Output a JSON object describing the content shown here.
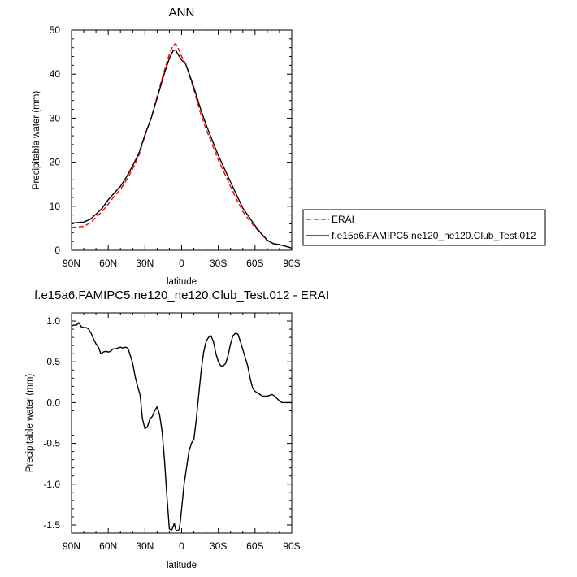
{
  "chart_data": [
    {
      "type": "line",
      "title": "ANN",
      "xlabel": "latitude",
      "ylabel": "Precipitable water (mm)",
      "xlim": [
        90,
        -90
      ],
      "ylim": [
        0,
        50
      ],
      "x_ticks": [
        90,
        60,
        30,
        0,
        -30,
        -60,
        -90
      ],
      "x_tick_labels": [
        "90N",
        "60N",
        "30N",
        "0",
        "30S",
        "60S",
        "90S"
      ],
      "y_ticks": [
        0,
        10,
        20,
        30,
        40,
        50
      ],
      "y_tick_labels": [
        "0",
        "10",
        "20",
        "30",
        "40",
        "50"
      ],
      "legend_position": "right",
      "series": [
        {
          "name": "ERAI",
          "color": "#ff0000",
          "style": "dashed",
          "x": [
            90,
            85,
            80,
            75,
            70,
            65,
            60,
            55,
            50,
            45,
            40,
            35,
            30,
            25,
            20,
            15,
            10,
            7,
            5,
            3,
            0,
            -3,
            -5,
            -10,
            -15,
            -20,
            -25,
            -30,
            -35,
            -40,
            -45,
            -50,
            -55,
            -60,
            -65,
            -70,
            -75,
            -80,
            -85,
            -90
          ],
          "y": [
            5.2,
            5.3,
            5.4,
            6.2,
            7.5,
            8.8,
            10.5,
            12.3,
            13.8,
            16.0,
            18.5,
            21.5,
            26.0,
            30.0,
            35.0,
            40.0,
            44.5,
            46.5,
            46.9,
            46.0,
            44.0,
            42.5,
            41.0,
            36.5,
            31.5,
            27.5,
            24.0,
            20.5,
            17.5,
            14.5,
            11.5,
            8.8,
            6.9,
            5.2,
            3.7,
            2.2,
            1.5,
            1.3,
            0.9,
            0.5
          ]
        },
        {
          "name": "f.e15a6.FAMIPC5.ne120_ne120.Club_Test.012",
          "color": "#000000",
          "style": "solid",
          "x": [
            90,
            85,
            80,
            75,
            70,
            65,
            60,
            55,
            50,
            45,
            40,
            35,
            30,
            25,
            20,
            15,
            10,
            7,
            5,
            3,
            0,
            -3,
            -5,
            -10,
            -15,
            -20,
            -25,
            -30,
            -35,
            -40,
            -45,
            -50,
            -55,
            -60,
            -65,
            -70,
            -75,
            -80,
            -85,
            -90
          ],
          "y": [
            6.2,
            6.3,
            6.4,
            7.0,
            8.2,
            9.5,
            11.5,
            13.0,
            14.5,
            16.7,
            19.2,
            22.0,
            26.2,
            29.9,
            34.6,
            39.4,
            43.6,
            45.3,
            45.5,
            44.5,
            43.2,
            42.5,
            41.0,
            37.0,
            32.5,
            28.5,
            25.0,
            21.5,
            18.5,
            15.5,
            12.5,
            9.6,
            7.6,
            5.6,
            3.8,
            2.3,
            1.5,
            1.3,
            0.9,
            0.5
          ]
        }
      ]
    },
    {
      "type": "line",
      "title": "f.e15a6.FAMIPC5.ne120_ne120.Club_Test.012 - ERAI",
      "xlabel": "latitude",
      "ylabel": "Precipitable water (mm)",
      "xlim": [
        90,
        -90
      ],
      "ylim": [
        -1.6,
        1.1
      ],
      "x_ticks": [
        90,
        60,
        30,
        0,
        -30,
        -60,
        -90
      ],
      "x_tick_labels": [
        "90N",
        "60N",
        "30N",
        "0",
        "30S",
        "60S",
        "90S"
      ],
      "y_ticks": [
        1.0,
        0.5,
        0.0,
        -0.5,
        -1.0,
        -1.5
      ],
      "y_tick_labels": [
        "1.0",
        "0.5",
        "0.0",
        "-0.5",
        "-1.0",
        "-1.5"
      ],
      "series": [
        {
          "color": "#000000",
          "style": "solid",
          "x": [
            90,
            88,
            86,
            84,
            82,
            80,
            78,
            76,
            74,
            72,
            70,
            68,
            66,
            64,
            62,
            60,
            58,
            56,
            54,
            52,
            50,
            48,
            46,
            44,
            42,
            40,
            38,
            36,
            34,
            32,
            30,
            28,
            26,
            24,
            22,
            20,
            18,
            16,
            14,
            12,
            10,
            8,
            7,
            6,
            5,
            4,
            3,
            2,
            1,
            0,
            -2,
            -4,
            -6,
            -8,
            -10,
            -12,
            -14,
            -16,
            -18,
            -20,
            -22,
            -24,
            -26,
            -28,
            -30,
            -32,
            -34,
            -36,
            -38,
            -40,
            -42,
            -44,
            -46,
            -48,
            -50,
            -52,
            -54,
            -56,
            -58,
            -60,
            -62,
            -64,
            -66,
            -68,
            -70,
            -72,
            -74,
            -76,
            -78,
            -80,
            -82,
            -84,
            -86,
            -88,
            -90
          ],
          "y": [
            0.94,
            0.95,
            0.95,
            0.98,
            0.93,
            0.92,
            0.92,
            0.9,
            0.85,
            0.78,
            0.72,
            0.68,
            0.6,
            0.62,
            0.63,
            0.62,
            0.63,
            0.66,
            0.66,
            0.67,
            0.68,
            0.67,
            0.68,
            0.67,
            0.58,
            0.48,
            0.32,
            0.2,
            0.1,
            -0.2,
            -0.32,
            -0.3,
            -0.2,
            -0.17,
            -0.1,
            -0.05,
            -0.15,
            -0.35,
            -0.7,
            -1.15,
            -1.55,
            -1.56,
            -1.52,
            -1.48,
            -1.55,
            -1.57,
            -1.57,
            -1.55,
            -1.45,
            -1.3,
            -1.0,
            -0.8,
            -0.6,
            -0.5,
            -0.45,
            -0.2,
            0.1,
            0.4,
            0.62,
            0.75,
            0.8,
            0.82,
            0.75,
            0.6,
            0.5,
            0.45,
            0.45,
            0.48,
            0.58,
            0.72,
            0.82,
            0.85,
            0.84,
            0.75,
            0.65,
            0.55,
            0.45,
            0.3,
            0.18,
            0.14,
            0.12,
            0.1,
            0.08,
            0.08,
            0.08,
            0.09,
            0.1,
            0.08,
            0.05,
            0.02,
            0.0,
            0.0,
            0.0,
            0.0,
            0.0
          ]
        }
      ]
    }
  ]
}
